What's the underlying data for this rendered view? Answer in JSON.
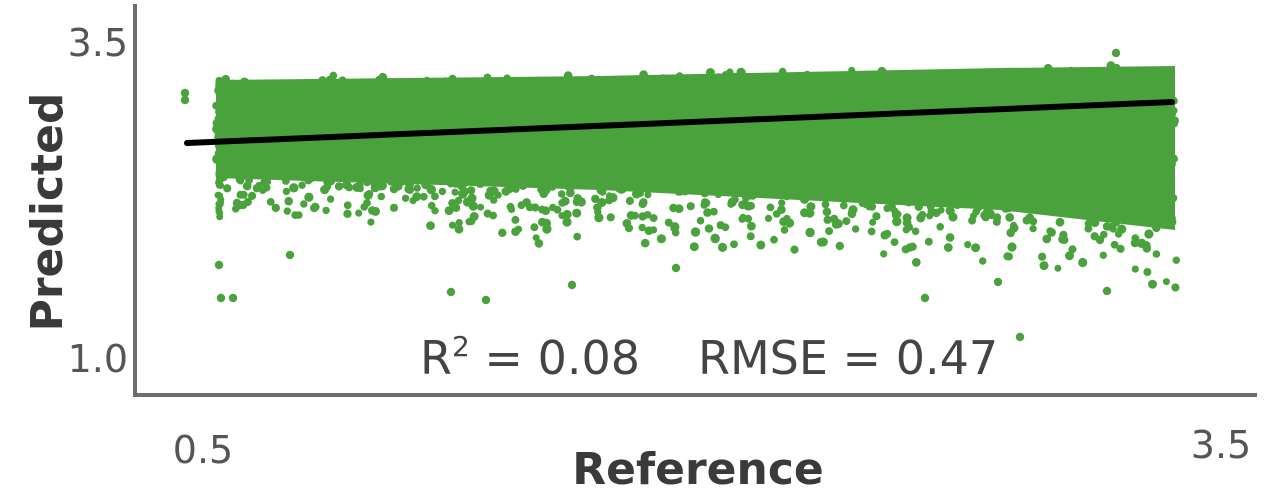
{
  "chart_data": {
    "type": "scatter",
    "xlabel": "Reference",
    "ylabel": "Predicted",
    "xlim": [
      0.5,
      3.5
    ],
    "ylim": [
      1.0,
      3.5
    ],
    "x_ticks": [
      "0.5",
      "3.5"
    ],
    "y_ticks": [
      "3.5",
      "1.0"
    ],
    "point_color": "#4aa23c",
    "line_color": "#000000",
    "fit_line": {
      "x": [
        0.6,
        3.5
      ],
      "y": [
        2.85,
        3.2
      ]
    },
    "annotations": {
      "r2_label": "R",
      "r2_superscript": "2",
      "r2_value": " = 0.08",
      "rmse": "RMSE = 0.47"
    },
    "grid": false,
    "legend": "none",
    "outliers": [
      {
        "x": 0.6,
        "y": 3.22
      },
      {
        "x": 0.6,
        "y": 3.18
      },
      {
        "x": 0.72,
        "y": 2.3
      },
      {
        "x": 0.73,
        "y": 2.05
      },
      {
        "x": 0.72,
        "y": 2.55
      },
      {
        "x": 0.78,
        "y": 2.05
      },
      {
        "x": 0.95,
        "y": 2.1
      },
      {
        "x": 1.3,
        "y": 2.2
      },
      {
        "x": 1.8,
        "y": 2.25
      },
      {
        "x": 1.95,
        "y": 2.05
      },
      {
        "x": 2.2,
        "y": 2.15
      },
      {
        "x": 2.55,
        "y": 2.2
      },
      {
        "x": 2.88,
        "y": 2.05
      },
      {
        "x": 3.08,
        "y": 1.9
      },
      {
        "x": 3.2,
        "y": 2.1
      },
      {
        "x": 3.25,
        "y": 2.08
      },
      {
        "x": 3.33,
        "y": 3.43
      }
    ],
    "regions": [
      {
        "x_range": [
          0.72,
          3.5
        ],
        "y_top": 3.34,
        "y_bottom_start": 2.72,
        "y_bottom_end": 2.46
      },
      {
        "x_range": [
          0.72,
          3.5
        ],
        "y_top": 2.82,
        "y_bottom_start": 2.5,
        "y_bottom_end": 2.28
      }
    ]
  }
}
